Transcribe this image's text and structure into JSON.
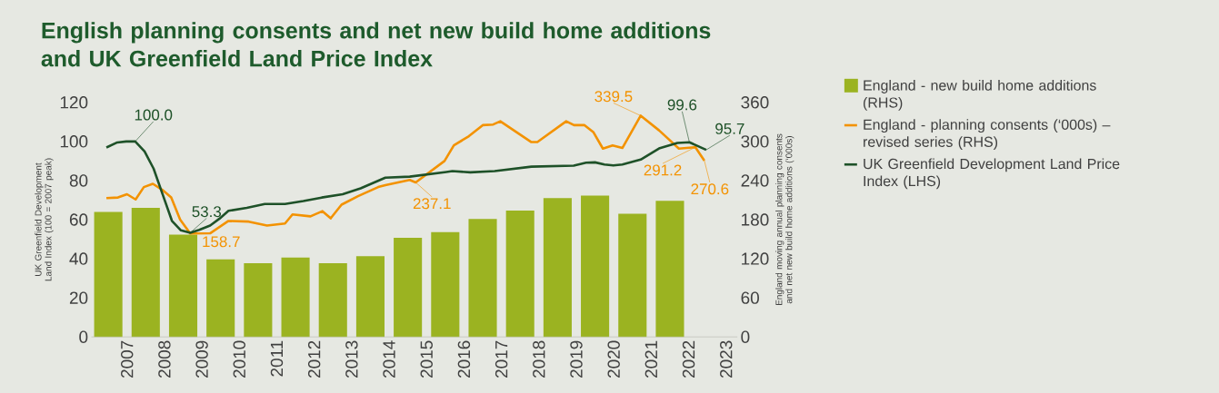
{
  "chart_data": {
    "type": "bar",
    "title": "English planning consents and net new build home additions and UK Greenfield Land Price Index",
    "ylabel": "UK Greenfield Development Land Index (100 = 2007 peak)",
    "y2label": "England moving annual planning consents and net new build home additions (‘000s)",
    "xlim": [
      2006.05,
      2023.3
    ],
    "xticks": [
      2007,
      2008,
      2009,
      2010,
      2011,
      2012,
      2013,
      2014,
      2015,
      2016,
      2017,
      2018,
      2019,
      2020,
      2021,
      2022,
      2023
    ],
    "ylim": [
      0,
      120
    ],
    "yticks": [
      0,
      20,
      40,
      60,
      80,
      100,
      120
    ],
    "y2lim": [
      0,
      360
    ],
    "y2ticks": [
      0,
      60,
      120,
      180,
      240,
      300,
      360
    ],
    "legend": "right",
    "series": [
      {
        "name": "England - new build home additions (RHS)",
        "color": "#9bb321",
        "axis": "y2",
        "x": [
          2006.5,
          2007.5,
          2008.5,
          2009.5,
          2010.5,
          2011.5,
          2012.5,
          2013.5,
          2014.5,
          2015.5,
          2016.5,
          2017.5,
          2018.5,
          2019.5,
          2020.5,
          2021.5
        ],
        "values": [
          192,
          198,
          157,
          119,
          113,
          122,
          113,
          124,
          152,
          161,
          181,
          194,
          213,
          217,
          189,
          209
        ]
      },
      {
        "name": "England - planning consents (‘000s) – revised series (RHS)",
        "color": "#f39200",
        "type": "line",
        "axis": "y2",
        "x": [
          2006.45,
          2006.76,
          2007.0,
          2007.23,
          2007.45,
          2007.69,
          2007.96,
          2008.18,
          2008.42,
          2008.69,
          2009.22,
          2009.71,
          2010.25,
          2010.74,
          2011.22,
          2011.42,
          2011.9,
          2012.22,
          2012.44,
          2012.73,
          2013.17,
          2013.71,
          2013.9,
          2014.55,
          2014.71,
          2015.48,
          2015.73,
          2016.13,
          2016.5,
          2016.78,
          2016.97,
          2017.8,
          2017.96,
          2018.73,
          2018.94,
          2019.22,
          2019.46,
          2019.71,
          2019.97,
          2020.23,
          2020.72,
          2021.21,
          2021.74,
          2022.18,
          2022.42
        ],
        "values": [
          213,
          214,
          219,
          211,
          230,
          235,
          225,
          214,
          180,
          158.7,
          159,
          178,
          177,
          171,
          174,
          188,
          185,
          193,
          182,
          203,
          216,
          230,
          233,
          241,
          237.1,
          270,
          294,
          308,
          325,
          326,
          331,
          299,
          299,
          331,
          325,
          325,
          314,
          289,
          294,
          290,
          339.5,
          317,
          289,
          291.2,
          270.6
        ],
        "value_labels": [
          null,
          null,
          null,
          null,
          null,
          null,
          null,
          null,
          null,
          "158.7",
          null,
          null,
          null,
          null,
          null,
          null,
          null,
          null,
          null,
          null,
          null,
          null,
          null,
          null,
          "237.1",
          null,
          null,
          null,
          null,
          null,
          null,
          null,
          null,
          null,
          null,
          null,
          null,
          null,
          null,
          null,
          "339.5",
          null,
          null,
          "291.2",
          "270.6"
        ]
      },
      {
        "name": "UK Greenfield Development Land Price Index (LHS)",
        "color": "#1e5128",
        "type": "line",
        "axis": "y",
        "x": [
          2006.45,
          2006.74,
          2006.98,
          2007.22,
          2007.47,
          2007.71,
          2007.96,
          2008.2,
          2008.44,
          2008.69,
          2008.93,
          2009.22,
          2009.47,
          2009.71,
          2010.2,
          2010.68,
          2011.22,
          2011.71,
          2012.2,
          2012.76,
          2013.24,
          2013.9,
          2014.55,
          2015.53,
          2015.69,
          2016.17,
          2016.82,
          2017.8,
          2018.93,
          2019.26,
          2019.5,
          2019.75,
          2019.99,
          2020.23,
          2020.72,
          2021.21,
          2021.7,
          2022.02,
          2022.47
        ],
        "values": [
          96.9,
          99.5,
          100.0,
          100.0,
          94.9,
          86.1,
          72.5,
          59.4,
          54.5,
          53.3,
          54.8,
          57,
          60.5,
          64.5,
          66,
          68,
          68,
          69.5,
          71.3,
          73,
          76,
          81.5,
          82,
          84.4,
          84.8,
          84.2,
          84.8,
          87.1,
          87.6,
          89.1,
          89.3,
          88.2,
          87.7,
          88.2,
          90.7,
          96.4,
          99.2,
          99.6,
          95.7
        ],
        "value_labels": [
          null,
          null,
          null,
          "100.0",
          null,
          null,
          null,
          null,
          null,
          "53.3",
          null,
          null,
          null,
          null,
          null,
          null,
          null,
          null,
          null,
          null,
          null,
          null,
          null,
          null,
          null,
          null,
          null,
          null,
          null,
          null,
          null,
          null,
          null,
          null,
          null,
          null,
          null,
          "99.6",
          "95.7"
        ]
      }
    ]
  }
}
